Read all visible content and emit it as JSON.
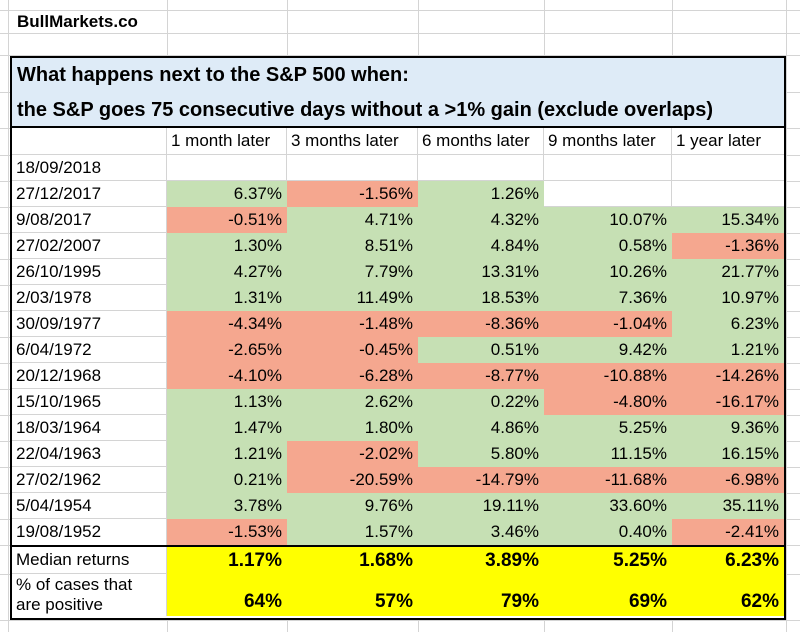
{
  "brand": "BullMarkets.co",
  "title": {
    "line1": "What happens next to the S&P 500 when:",
    "line2": "the S&P goes 75 consecutive days without a >1% gain (exclude overlaps)"
  },
  "chart_data": {
    "type": "table",
    "title": "What happens next to the S&P 500 when: the S&P goes 75 consecutive days without a >1% gain (exclude overlaps)",
    "columns": [
      "1 month later",
      "3 months later",
      "6 months later",
      "9 months later",
      "1 year later"
    ],
    "rows": [
      {
        "date": "18/09/2018",
        "values": [
          "",
          "",
          "",
          "",
          ""
        ]
      },
      {
        "date": "27/12/2017",
        "values": [
          "6.37%",
          "-1.56%",
          "1.26%",
          "",
          ""
        ]
      },
      {
        "date": "9/08/2017",
        "values": [
          "-0.51%",
          "4.71%",
          "4.32%",
          "10.07%",
          "15.34%"
        ]
      },
      {
        "date": "27/02/2007",
        "values": [
          "1.30%",
          "8.51%",
          "4.84%",
          "0.58%",
          "-1.36%"
        ]
      },
      {
        "date": "26/10/1995",
        "values": [
          "4.27%",
          "7.79%",
          "13.31%",
          "10.26%",
          "21.77%"
        ]
      },
      {
        "date": "2/03/1978",
        "values": [
          "1.31%",
          "11.49%",
          "18.53%",
          "7.36%",
          "10.97%"
        ]
      },
      {
        "date": "30/09/1977",
        "values": [
          "-4.34%",
          "-1.48%",
          "-8.36%",
          "-1.04%",
          "6.23%"
        ]
      },
      {
        "date": "6/04/1972",
        "values": [
          "-2.65%",
          "-0.45%",
          "0.51%",
          "9.42%",
          "1.21%"
        ]
      },
      {
        "date": "20/12/1968",
        "values": [
          "-4.10%",
          "-6.28%",
          "-8.77%",
          "-10.88%",
          "-14.26%"
        ]
      },
      {
        "date": "15/10/1965",
        "values": [
          "1.13%",
          "2.62%",
          "0.22%",
          "-4.80%",
          "-16.17%"
        ]
      },
      {
        "date": "18/03/1964",
        "values": [
          "1.47%",
          "1.80%",
          "4.86%",
          "5.25%",
          "9.36%"
        ]
      },
      {
        "date": "22/04/1963",
        "values": [
          "1.21%",
          "-2.02%",
          "5.80%",
          "11.15%",
          "16.15%"
        ]
      },
      {
        "date": "27/02/1962",
        "values": [
          "0.21%",
          "-20.59%",
          "-14.79%",
          "-11.68%",
          "-6.98%"
        ]
      },
      {
        "date": "5/04/1954",
        "values": [
          "3.78%",
          "9.76%",
          "19.11%",
          "33.60%",
          "35.11%"
        ]
      },
      {
        "date": "19/08/1952",
        "values": [
          "-1.53%",
          "1.57%",
          "3.46%",
          "0.40%",
          "-2.41%"
        ]
      }
    ],
    "median": {
      "label": "Median returns",
      "values": [
        "1.17%",
        "1.68%",
        "3.89%",
        "5.25%",
        "6.23%"
      ]
    },
    "pct_positive": {
      "label_line1": "% of cases that",
      "label_line2": "are positive",
      "values": [
        "64%",
        "57%",
        "79%",
        "69%",
        "62%"
      ]
    }
  },
  "colors": {
    "positive_fill": "#C6E0B4",
    "negative_fill": "#F5A78F",
    "highlight_fill": "#FFFF00",
    "title_bg": "#DEEBF7",
    "gridline": "#D4D4D4",
    "border": "#000000"
  }
}
